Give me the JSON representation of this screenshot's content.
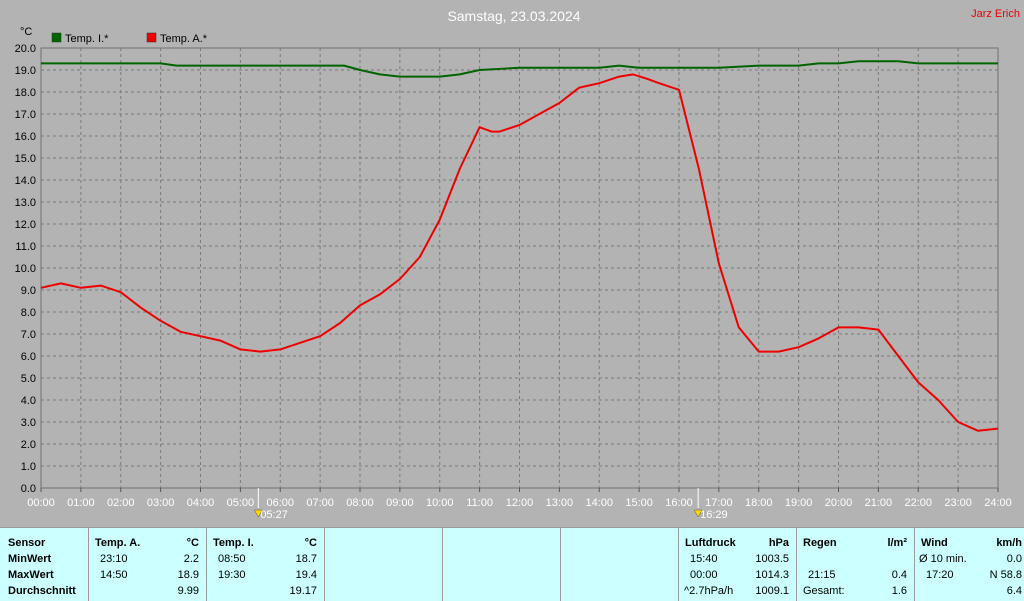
{
  "header": {
    "title": "Samstag, 23.03.2024",
    "author": "Jarz Erich"
  },
  "chart_data": {
    "type": "line",
    "yunit": "°C",
    "ylim": [
      0.0,
      20.0
    ],
    "yticks": [
      "0.0",
      "1.0",
      "2.0",
      "3.0",
      "4.0",
      "5.0",
      "6.0",
      "7.0",
      "8.0",
      "9.0",
      "10.0",
      "11.0",
      "12.0",
      "13.0",
      "14.0",
      "15.0",
      "16.0",
      "17.0",
      "18.0",
      "19.0",
      "20.0"
    ],
    "xlim": [
      0,
      24
    ],
    "xticks": [
      "00:00",
      "01:00",
      "02:00",
      "03:00",
      "04:00",
      "05:00",
      "06:00",
      "07:00",
      "08:00",
      "09:00",
      "10:00",
      "11:00",
      "12:00",
      "13:00",
      "14:00",
      "15:00",
      "16:00",
      "17:00",
      "18:00",
      "19:00",
      "20:00",
      "21:00",
      "22:00",
      "23:00",
      "24:00"
    ],
    "grid": true,
    "legend": "top-left",
    "sunrise": {
      "time": 5.45,
      "label": "05:27"
    },
    "sunset": {
      "time": 16.48,
      "label": "16:29"
    },
    "series": [
      {
        "name": "Temp. I.*",
        "color": "#006400",
        "x": [
          0,
          1,
          2,
          3,
          3.4,
          4,
          5,
          6,
          7,
          7.6,
          8,
          8.5,
          9,
          10,
          10.5,
          11,
          12,
          13,
          14,
          14.5,
          15,
          16,
          17,
          18,
          19,
          19.5,
          20,
          20.5,
          21,
          21.5,
          22,
          23,
          24
        ],
        "y": [
          19.3,
          19.3,
          19.3,
          19.3,
          19.2,
          19.2,
          19.2,
          19.2,
          19.2,
          19.2,
          19.0,
          18.8,
          18.7,
          18.7,
          18.8,
          19.0,
          19.1,
          19.1,
          19.1,
          19.2,
          19.1,
          19.1,
          19.1,
          19.2,
          19.2,
          19.3,
          19.3,
          19.4,
          19.4,
          19.4,
          19.3,
          19.3,
          19.3
        ]
      },
      {
        "name": "Temp. A.*",
        "color": "#ee0000",
        "x": [
          0,
          0.5,
          1,
          1.5,
          2,
          2.5,
          3,
          3.5,
          4,
          4.5,
          5,
          5.5,
          6,
          6.5,
          7,
          7.5,
          8,
          8.5,
          9,
          9.5,
          10,
          10.5,
          11,
          11.3,
          11.5,
          12,
          12.5,
          13,
          13.5,
          14,
          14.5,
          14.85,
          15.2,
          15.5,
          16,
          16.5,
          17,
          17.5,
          18,
          18.5,
          19,
          19.5,
          20,
          20.5,
          21,
          21.5,
          22,
          22.5,
          23,
          23.5,
          24
        ],
        "y": [
          9.1,
          9.3,
          9.1,
          9.2,
          8.9,
          8.2,
          7.6,
          7.1,
          6.9,
          6.7,
          6.3,
          6.2,
          6.3,
          6.6,
          6.9,
          7.5,
          8.3,
          8.8,
          9.5,
          10.5,
          12.2,
          14.5,
          16.4,
          16.2,
          16.2,
          16.5,
          17.0,
          17.5,
          18.2,
          18.4,
          18.7,
          18.8,
          18.6,
          18.4,
          18.1,
          14.5,
          10.2,
          7.3,
          6.2,
          6.2,
          6.4,
          6.8,
          7.3,
          7.3,
          7.2,
          6.0,
          4.8,
          4.0,
          3.0,
          2.6,
          2.7
        ]
      }
    ]
  },
  "table": {
    "row_labels": [
      "Sensor",
      "MinWert",
      "MaxWert",
      "Durchschnitt"
    ],
    "temp_a": {
      "header": "Temp. A.",
      "unit": "°C",
      "min_time": "23:10",
      "min_val": "2.2",
      "max_time": "14:50",
      "max_val": "18.9",
      "avg": "9.99"
    },
    "temp_i": {
      "header": "Temp. I.",
      "unit": "°C",
      "min_time": "08:50",
      "min_val": "18.7",
      "max_time": "19:30",
      "max_val": "19.4",
      "avg": "19.17"
    },
    "pressure": {
      "header": "Luftdruck",
      "unit": "hPa",
      "min_time": "15:40",
      "min_val": "1003.5",
      "max_time": "00:00",
      "max_val": "1014.3",
      "trend": "^2.7hPa/h",
      "avg": "1009.1"
    },
    "rain": {
      "header": "Regen",
      "unit": "l/m²",
      "max_time": "21:15",
      "max_val": "0.4",
      "total_label": "Gesamt:",
      "total": "1.6"
    },
    "wind": {
      "header": "Wind",
      "unit": "km/h",
      "avg_label": "Ø 10 min.",
      "avg_val": "0.0",
      "max_time": "17:20",
      "max_val": "N 58.8",
      "last": "6.4"
    }
  }
}
